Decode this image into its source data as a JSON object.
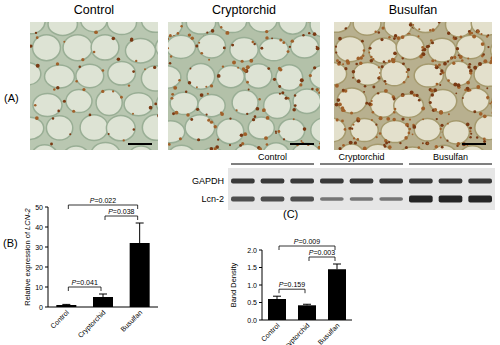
{
  "panels": {
    "a": "(A)",
    "b": "(B)",
    "c": "(C)"
  },
  "micrographs": [
    {
      "title": "Control"
    },
    {
      "title": "Cryptorchid"
    },
    {
      "title": "Busulfan"
    }
  ],
  "blot": {
    "groups": [
      "Control",
      "Cryptorchid",
      "Busulfan"
    ],
    "rows": [
      "GAPDH",
      "Lcn-2"
    ]
  },
  "chart_data": [
    {
      "type": "bar",
      "ylabel": "Relative expression of LCN-2",
      "categories": [
        "Control",
        "Cryptorchid",
        "Busulfan"
      ],
      "values": [
        1,
        5,
        32
      ],
      "errors": [
        0.3,
        1.5,
        10
      ],
      "color": "#000000",
      "ylim": [
        0,
        50
      ],
      "yticks": [
        0,
        10,
        20,
        30,
        40,
        50
      ],
      "annotations": [
        {
          "text": "P=0.041",
          "between": [
            "Control",
            "Cryptorchid"
          ]
        },
        {
          "text": "P=0.038",
          "between": [
            "Cryptorchid",
            "Busulfan"
          ]
        },
        {
          "text": "P=0.022",
          "between": [
            "Control",
            "Busulfan"
          ]
        }
      ]
    },
    {
      "type": "bar",
      "ylabel": "Band Density",
      "categories": [
        "Control",
        "Cryptorchid",
        "Busulfan"
      ],
      "values": [
        0.6,
        0.42,
        1.45
      ],
      "errors": [
        0.08,
        0.03,
        0.15
      ],
      "color": "#000000",
      "ylim": [
        0,
        2
      ],
      "yticks": [
        {
          "value": 0,
          "label": "0.0"
        },
        {
          "value": 0.5,
          "label": "0.5"
        },
        {
          "value": 1,
          "label": "1.0"
        },
        {
          "value": 1.5,
          "label": "1.5"
        },
        {
          "value": 2,
          "label": "2.0"
        }
      ],
      "annotations": [
        {
          "text": "P=0.159",
          "between": [
            "Control",
            "Cryptorchid"
          ]
        },
        {
          "text": "P=0.003",
          "between": [
            "Cryptorchid",
            "Busulfan"
          ]
        },
        {
          "text": "P=0.009",
          "between": [
            "Control",
            "Busulfan"
          ]
        }
      ]
    }
  ]
}
